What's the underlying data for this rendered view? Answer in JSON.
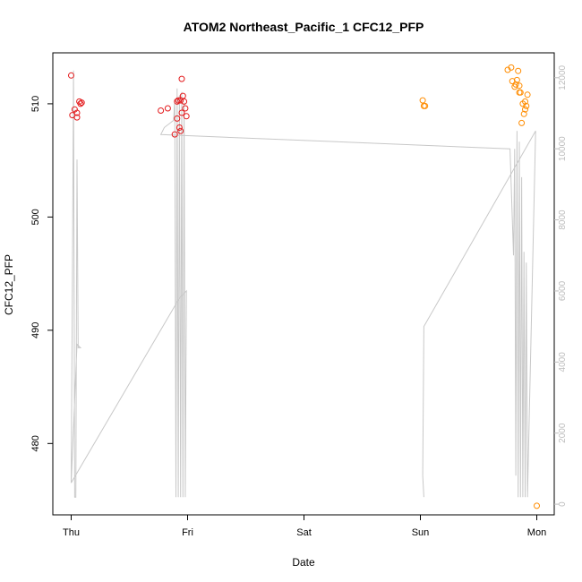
{
  "chart_data": {
    "type": "scatter",
    "title": "ATOM2 Northeast_Pacific_1 CFC12_PFP",
    "xlabel": "Date",
    "ylabel": "CFC12_PFP",
    "x_ticks": [
      "Thu",
      "Fri",
      "Sat",
      "Sun",
      "Mon"
    ],
    "ylim": [
      473.7,
      514.5
    ],
    "y_ticks": [
      480,
      490,
      500,
      510
    ],
    "y2lim": [
      -300,
      12700
    ],
    "y2_ticks": [
      0,
      2000,
      4000,
      6000,
      8000,
      10000,
      12000
    ],
    "y2_tick_color": "#bdbdbd",
    "altitude_line_color": "#c8c8c8",
    "grid": false,
    "series": [
      {
        "color": "#e31a1c",
        "points": [
          {
            "x": 0.0,
            "y": 512.5
          },
          {
            "x": 0.01,
            "y": 509.0
          },
          {
            "x": 0.03,
            "y": 509.5
          },
          {
            "x": 0.05,
            "y": 508.8
          },
          {
            "x": 0.05,
            "y": 509.2
          },
          {
            "x": 0.07,
            "y": 510.2
          },
          {
            "x": 0.08,
            "y": 510.0
          },
          {
            "x": 0.09,
            "y": 510.1
          },
          {
            "x": 0.77,
            "y": 509.4
          },
          {
            "x": 0.83,
            "y": 509.6
          },
          {
            "x": 0.89,
            "y": 507.3
          },
          {
            "x": 0.91,
            "y": 508.7
          },
          {
            "x": 0.91,
            "y": 510.2
          },
          {
            "x": 0.92,
            "y": 510.3
          },
          {
            "x": 0.93,
            "y": 507.9
          },
          {
            "x": 0.94,
            "y": 507.6
          },
          {
            "x": 0.94,
            "y": 510.3
          },
          {
            "x": 0.95,
            "y": 512.2
          },
          {
            "x": 0.95,
            "y": 509.2
          },
          {
            "x": 0.96,
            "y": 510.7
          },
          {
            "x": 0.97,
            "y": 510.2
          },
          {
            "x": 0.98,
            "y": 509.6
          },
          {
            "x": 0.99,
            "y": 508.9
          }
        ]
      },
      {
        "color": "#ff8c00",
        "points": [
          {
            "x": 3.02,
            "y": 510.3
          },
          {
            "x": 3.03,
            "y": 509.8
          },
          {
            "x": 3.04,
            "y": 509.8
          },
          {
            "x": 3.75,
            "y": 513.0
          },
          {
            "x": 3.78,
            "y": 513.2
          },
          {
            "x": 3.79,
            "y": 512.0
          },
          {
            "x": 3.81,
            "y": 511.5
          },
          {
            "x": 3.82,
            "y": 511.7
          },
          {
            "x": 3.83,
            "y": 512.1
          },
          {
            "x": 3.84,
            "y": 512.9
          },
          {
            "x": 3.85,
            "y": 511.0
          },
          {
            "x": 3.85,
            "y": 511.6
          },
          {
            "x": 3.86,
            "y": 511.0
          },
          {
            "x": 3.87,
            "y": 508.3
          },
          {
            "x": 3.88,
            "y": 510.0
          },
          {
            "x": 3.89,
            "y": 509.1
          },
          {
            "x": 3.9,
            "y": 509.5
          },
          {
            "x": 3.9,
            "y": 510.2
          },
          {
            "x": 3.91,
            "y": 509.8
          },
          {
            "x": 3.92,
            "y": 510.8
          },
          {
            "x": 4.0,
            "y": 474.5
          }
        ]
      }
    ],
    "altitude": {
      "x": [
        0.0,
        0.01,
        0.02,
        0.03,
        0.04,
        0.05,
        0.06,
        0.07,
        0.08,
        0.05,
        0.0,
        0.93,
        0.99,
        0.98,
        0.97,
        0.96,
        0.95,
        0.94,
        0.93,
        0.92,
        0.91,
        0.9,
        0.89,
        0.88,
        0.8,
        0.77,
        3.77,
        3.8,
        3.81,
        3.82,
        3.83,
        3.84,
        3.85,
        3.86,
        3.87,
        3.88,
        3.89,
        3.9,
        3.91,
        3.92,
        3.99,
        3.03,
        3.02,
        3.03
      ],
      "y": [
        600,
        6000,
        12200,
        200,
        200,
        9700,
        4400,
        4400,
        4400,
        4500,
        600,
        5800,
        6000,
        200,
        11300,
        200,
        11600,
        200,
        11500,
        200,
        11700,
        200,
        11400,
        10800,
        10600,
        10400,
        10000,
        7000,
        10000,
        800,
        10500,
        200,
        10200,
        200,
        9200,
        200,
        7100,
        200,
        6800,
        200,
        10500,
        5000,
        800,
        200
      ]
    }
  }
}
